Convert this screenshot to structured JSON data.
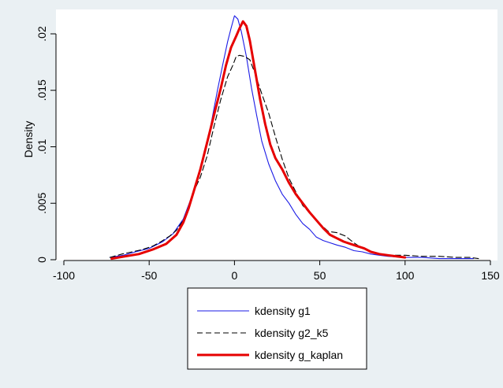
{
  "chart_data": {
    "type": "line",
    "title": "",
    "xlabel": "",
    "ylabel": "Density",
    "xlim": [
      -100,
      150
    ],
    "ylim": [
      0,
      0.0215
    ],
    "x_ticks": [
      {
        "value": -100,
        "label": "-100"
      },
      {
        "value": -50,
        "label": "-50"
      },
      {
        "value": 0,
        "label": "0"
      },
      {
        "value": 50,
        "label": "50"
      },
      {
        "value": 100,
        "label": "100"
      },
      {
        "value": 150,
        "label": "150"
      }
    ],
    "y_ticks": [
      {
        "value": 0,
        "label": "0"
      },
      {
        "value": 0.005,
        "label": ".005"
      },
      {
        "value": 0.01,
        "label": ".01"
      },
      {
        "value": 0.015,
        "label": ".015"
      },
      {
        "value": 0.02,
        "label": ".02"
      }
    ],
    "grid": false,
    "legend_position": "bottom",
    "series": [
      {
        "name": "kdensity g1",
        "color": "#1a1ae6",
        "dash": "solid",
        "width": "thin",
        "points": [
          [
            -73,
            0.0002
          ],
          [
            -65,
            0.0004
          ],
          [
            -58,
            0.0007
          ],
          [
            -50,
            0.001
          ],
          [
            -42,
            0.0016
          ],
          [
            -36,
            0.0023
          ],
          [
            -30,
            0.0036
          ],
          [
            -26,
            0.0052
          ],
          [
            -22,
            0.007
          ],
          [
            -18,
            0.0092
          ],
          [
            -14,
            0.0118
          ],
          [
            -10,
            0.015
          ],
          [
            -7,
            0.0172
          ],
          [
            -4,
            0.0193
          ],
          [
            -2,
            0.0205
          ],
          [
            0,
            0.0216
          ],
          [
            2,
            0.0213
          ],
          [
            4,
            0.0202
          ],
          [
            7,
            0.018
          ],
          [
            10,
            0.0152
          ],
          [
            13,
            0.0128
          ],
          [
            16,
            0.0105
          ],
          [
            20,
            0.0085
          ],
          [
            24,
            0.007
          ],
          [
            28,
            0.0058
          ],
          [
            32,
            0.005
          ],
          [
            36,
            0.004
          ],
          [
            40,
            0.0032
          ],
          [
            44,
            0.0027
          ],
          [
            48,
            0.002
          ],
          [
            52,
            0.0017
          ],
          [
            56,
            0.0015
          ],
          [
            60,
            0.0013
          ],
          [
            65,
            0.0011
          ],
          [
            70,
            0.0008
          ],
          [
            75,
            0.0007
          ],
          [
            80,
            0.0005
          ],
          [
            85,
            0.0004
          ],
          [
            90,
            0.0003
          ],
          [
            100,
            0.0002
          ],
          [
            110,
            0.0002
          ],
          [
            120,
            0.0001
          ],
          [
            130,
            0.0001
          ],
          [
            140,
            0.0001
          ]
        ]
      },
      {
        "name": "kdensity g2_k5",
        "color": "#000000",
        "dash": "dashed",
        "width": "thin",
        "points": [
          [
            -73,
            0.0002
          ],
          [
            -66,
            0.0005
          ],
          [
            -60,
            0.0007
          ],
          [
            -54,
            0.0009
          ],
          [
            -48,
            0.0012
          ],
          [
            -43,
            0.0016
          ],
          [
            -38,
            0.0021
          ],
          [
            -34,
            0.0026
          ],
          [
            -30,
            0.0035
          ],
          [
            -27,
            0.0046
          ],
          [
            -24,
            0.006
          ],
          [
            -20,
            0.0073
          ],
          [
            -16,
            0.0092
          ],
          [
            -12,
            0.0118
          ],
          [
            -8,
            0.0142
          ],
          [
            -4,
            0.0162
          ],
          [
            -1,
            0.0172
          ],
          [
            1,
            0.018
          ],
          [
            3,
            0.0181
          ],
          [
            6,
            0.018
          ],
          [
            9,
            0.0177
          ],
          [
            12,
            0.0165
          ],
          [
            16,
            0.0147
          ],
          [
            20,
            0.013
          ],
          [
            24,
            0.0109
          ],
          [
            28,
            0.0089
          ],
          [
            32,
            0.0072
          ],
          [
            36,
            0.006
          ],
          [
            40,
            0.0048
          ],
          [
            45,
            0.004
          ],
          [
            50,
            0.0032
          ],
          [
            55,
            0.0025
          ],
          [
            60,
            0.0024
          ],
          [
            65,
            0.0021
          ],
          [
            70,
            0.0015
          ],
          [
            75,
            0.001
          ],
          [
            80,
            0.0007
          ],
          [
            85,
            0.0005
          ],
          [
            92,
            0.0004
          ],
          [
            100,
            0.0004
          ],
          [
            110,
            0.0003
          ],
          [
            120,
            0.0003
          ],
          [
            130,
            0.0002
          ],
          [
            138,
            0.0002
          ],
          [
            143,
            0.0001
          ]
        ]
      },
      {
        "name": "kdensity g_kaplan",
        "color": "#e60000",
        "dash": "solid",
        "width": "thick",
        "points": [
          [
            -72,
            0.0001
          ],
          [
            -64,
            0.0003
          ],
          [
            -56,
            0.0005
          ],
          [
            -48,
            0.0009
          ],
          [
            -40,
            0.0014
          ],
          [
            -34,
            0.0022
          ],
          [
            -30,
            0.0033
          ],
          [
            -27,
            0.0045
          ],
          [
            -24,
            0.006
          ],
          [
            -20,
            0.008
          ],
          [
            -16,
            0.0104
          ],
          [
            -12,
            0.0128
          ],
          [
            -8,
            0.0152
          ],
          [
            -5,
            0.0172
          ],
          [
            -2,
            0.0188
          ],
          [
            1,
            0.0198
          ],
          [
            3,
            0.0205
          ],
          [
            5,
            0.0211
          ],
          [
            7,
            0.0207
          ],
          [
            9,
            0.0194
          ],
          [
            12,
            0.0168
          ],
          [
            15,
            0.0142
          ],
          [
            18,
            0.012
          ],
          [
            21,
            0.0102
          ],
          [
            24,
            0.009
          ],
          [
            28,
            0.008
          ],
          [
            32,
            0.0068
          ],
          [
            36,
            0.0058
          ],
          [
            40,
            0.005
          ],
          [
            44,
            0.0042
          ],
          [
            48,
            0.0035
          ],
          [
            52,
            0.0028
          ],
          [
            56,
            0.0022
          ],
          [
            60,
            0.0019
          ],
          [
            64,
            0.0016
          ],
          [
            68,
            0.0014
          ],
          [
            72,
            0.0012
          ],
          [
            76,
            0.001
          ],
          [
            80,
            0.0007
          ],
          [
            85,
            0.0005
          ],
          [
            90,
            0.0004
          ],
          [
            95,
            0.0003
          ],
          [
            100,
            0.0002
          ]
        ]
      }
    ]
  }
}
